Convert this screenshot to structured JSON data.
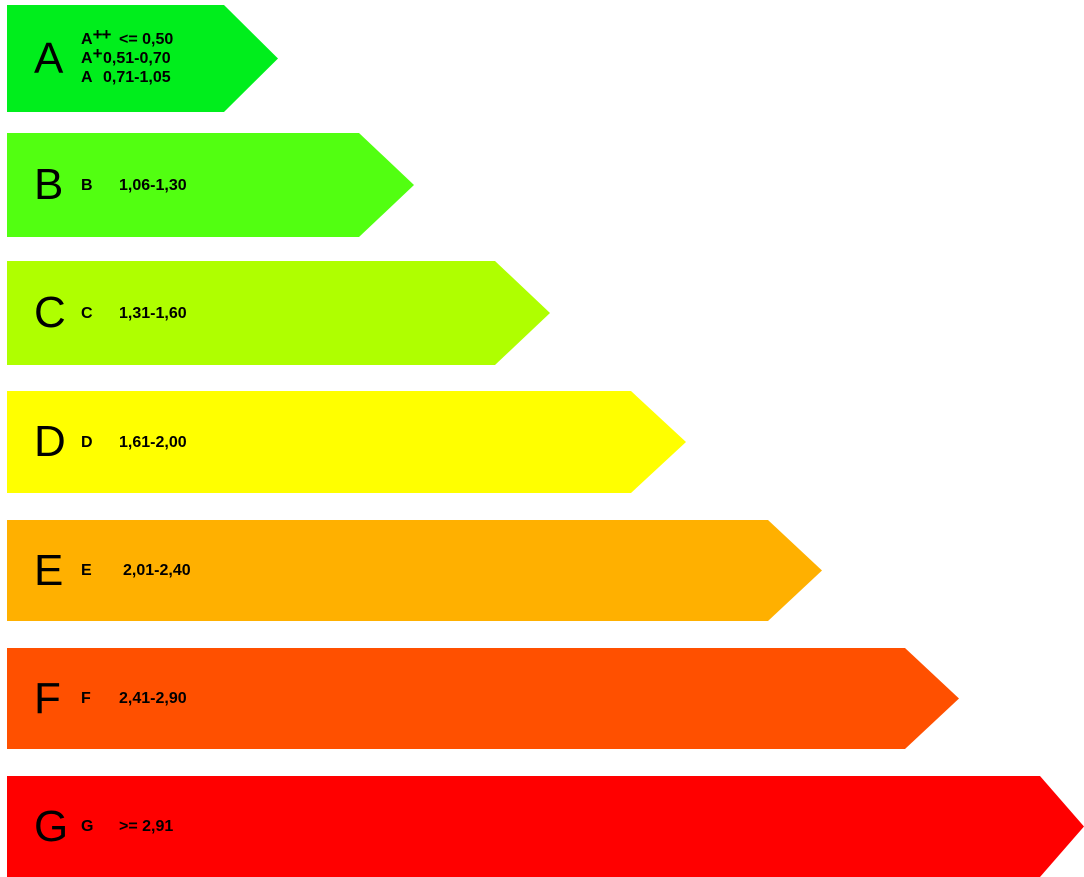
{
  "classes": [
    {
      "letter": "A",
      "color": "#00ee1c",
      "sublabels": [
        {
          "class": "A",
          "sup": "++",
          "range": "<= 0,50"
        },
        {
          "class": "A",
          "sup": "+",
          "range": "0,51-0,70"
        },
        {
          "class": "A",
          "sup": "",
          "range": "0,71-1,05"
        }
      ]
    },
    {
      "letter": "B",
      "color": "#52ff11",
      "sublabels": [
        {
          "class": "B",
          "sup": "",
          "range": "1,06-1,30"
        }
      ]
    },
    {
      "letter": "C",
      "color": "#afff00",
      "sublabels": [
        {
          "class": "C",
          "sup": "",
          "range": "1,31-1,60"
        }
      ]
    },
    {
      "letter": "D",
      "color": "#ffff00",
      "sublabels": [
        {
          "class": "D",
          "sup": "",
          "range": "1,61-2,00"
        }
      ]
    },
    {
      "letter": "E",
      "color": "#ffb000",
      "sublabels": [
        {
          "class": "E",
          "sup": "",
          "range": "2,01-2,40"
        }
      ]
    },
    {
      "letter": "F",
      "color": "#ff5000",
      "sublabels": [
        {
          "class": "F",
          "sup": "",
          "range": "2,41-2,90"
        }
      ]
    },
    {
      "letter": "G",
      "color": "#ff0000",
      "sublabels": [
        {
          "class": "G",
          "sup": "",
          "range": ">= 2,91"
        }
      ]
    }
  ]
}
